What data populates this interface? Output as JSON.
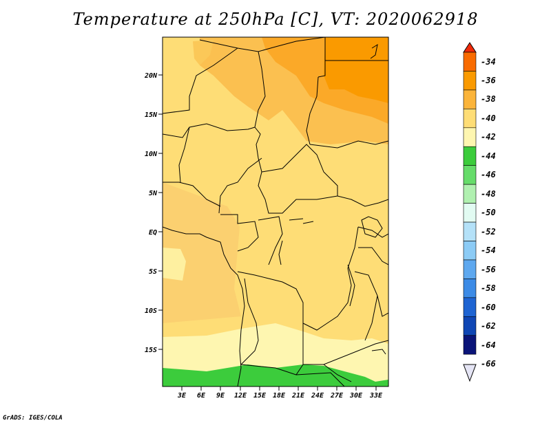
{
  "title": "Temperature at 250hPa [C], VT: 2020062918",
  "credit": "GrADS: IGES/COLA",
  "axes": {
    "lon_ticks": [
      "3E",
      "6E",
      "9E",
      "12E",
      "15E",
      "18E",
      "21E",
      "24E",
      "27E",
      "30E",
      "33E"
    ],
    "lat_ticks": [
      "20N",
      "15N",
      "10N",
      "5N",
      "EQ",
      "5S",
      "10S",
      "15S"
    ]
  },
  "colorbar": {
    "labels": [
      "-34",
      "-36",
      "-38",
      "-40",
      "-42",
      "-44",
      "-46",
      "-48",
      "-50",
      "-52",
      "-54",
      "-56",
      "-58",
      "-60",
      "-62",
      "-64",
      "-66"
    ],
    "colors": [
      "#f24a0a",
      "#f96b00",
      "#fa9a00",
      "#fbb43a",
      "#fedd76",
      "#fef6b0",
      "#3ccc3c",
      "#66dc6a",
      "#b0f0b0",
      "#e2fbf2",
      "#b4e1f8",
      "#8ccbf5",
      "#5ea8ef",
      "#3c8be6",
      "#1e64d2",
      "#0f46b4",
      "#0a1478",
      "#e5e5f5"
    ],
    "top_arrow_color": "#f02a0a",
    "bottom_arrow_color": "#e5e5f5"
  }
}
